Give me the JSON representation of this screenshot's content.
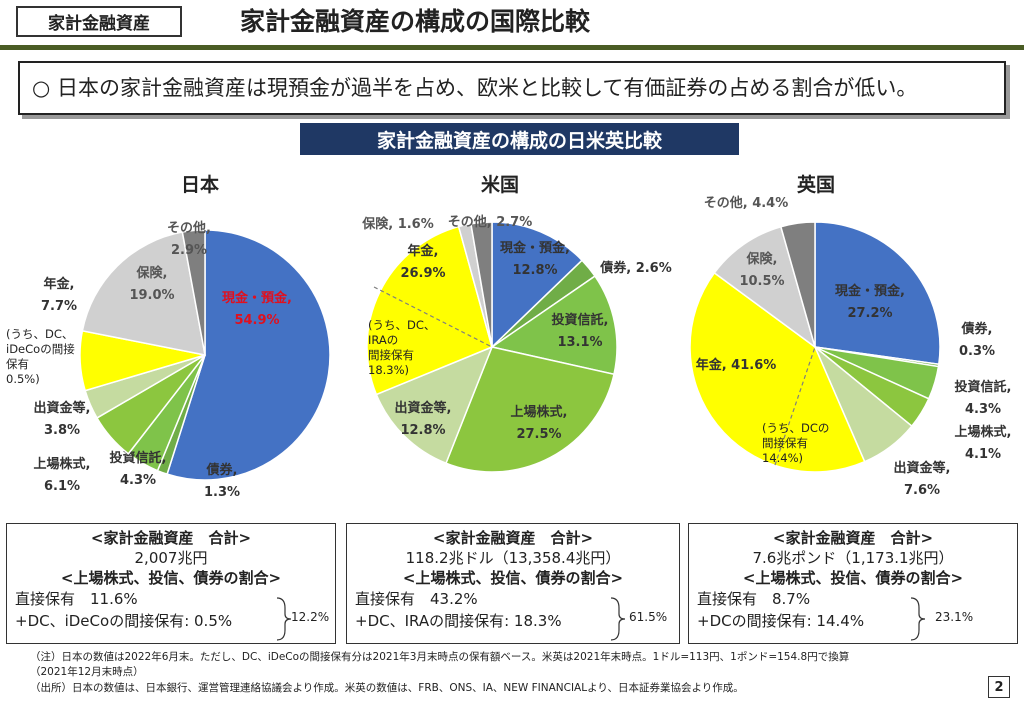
{
  "header": {
    "tag": "家計金融資産",
    "title": "家計金融資産の構成の国際比較"
  },
  "summary": "○ 日本の家計金融資産は現預金が過半を占め、欧米と比較して有価証券の占める割合が低い。",
  "banner": "家計金融資産の構成の日米英比較",
  "colors": {
    "cash": "#4472c4",
    "bonds": "#70ad47",
    "funds": "#7fc34a",
    "stocks": "#8cc63f",
    "investment": "#c5dba0",
    "pension": "#ffff00",
    "insurance": "#d0d0d0",
    "other": "#7f7f7f",
    "header_green": "#4a5c24",
    "banner_blue": "#1f3864",
    "highlight_red": "#e0101e"
  },
  "chart_data": [
    {
      "type": "pie",
      "title": "日本",
      "slices": [
        {
          "name": "現金・預金",
          "value": 54.9,
          "label_name": "現金・預金,",
          "label_value": "54.9%",
          "color": "cash"
        },
        {
          "name": "債券",
          "value": 1.3,
          "label_name": "債券,",
          "label_value": "1.3%",
          "color": "bonds"
        },
        {
          "name": "投資信託",
          "value": 4.3,
          "label_name": "投資信託,",
          "label_value": "4.3%",
          "color": "funds"
        },
        {
          "name": "上場株式",
          "value": 6.1,
          "label_name": "上場株式,",
          "label_value": "6.1%",
          "color": "stocks"
        },
        {
          "name": "出資金等",
          "value": 3.8,
          "label_name": "出資金等,",
          "label_value": "3.8%",
          "color": "investment"
        },
        {
          "name": "年金",
          "value": 7.7,
          "label_name": "年金,",
          "label_value": "7.7%",
          "color": "pension"
        },
        {
          "name": "保険",
          "value": 19.0,
          "label_name": "保険,",
          "label_value": "19.0%",
          "color": "insurance"
        },
        {
          "name": "その他",
          "value": 2.9,
          "label_name": "その他,",
          "label_value": "2.9%",
          "color": "other"
        }
      ],
      "pension_note": [
        "(うち、DC、",
        "iDeCoの間接",
        "保有",
        "0.5%)"
      ]
    },
    {
      "type": "pie",
      "title": "米国",
      "slices": [
        {
          "name": "現金・預金",
          "value": 12.8,
          "label_name": "現金・預金,",
          "label_value": "12.8%",
          "color": "cash"
        },
        {
          "name": "債券",
          "value": 2.6,
          "label_name": "債券, 2.6%",
          "label_value": "",
          "color": "bonds"
        },
        {
          "name": "投資信託",
          "value": 13.1,
          "label_name": "投資信託,",
          "label_value": "13.1%",
          "color": "funds"
        },
        {
          "name": "上場株式",
          "value": 27.5,
          "label_name": "上場株式,",
          "label_value": "27.5%",
          "color": "stocks"
        },
        {
          "name": "出資金等",
          "value": 12.8,
          "label_name": "出資金等,",
          "label_value": "12.8%",
          "color": "investment"
        },
        {
          "name": "年金",
          "value": 26.9,
          "label_name": "年金,",
          "label_value": "26.9%",
          "color": "pension"
        },
        {
          "name": "保険",
          "value": 1.6,
          "label_name": "保険, 1.6%",
          "label_value": "",
          "color": "insurance"
        },
        {
          "name": "その他",
          "value": 2.7,
          "label_name": "その他, 2.7%",
          "label_value": "",
          "color": "other"
        }
      ],
      "pension_note": [
        "(うち、DC、",
        "IRAの",
        "間接保有",
        "18.3%)"
      ]
    },
    {
      "type": "pie",
      "title": "英国",
      "slices": [
        {
          "name": "現金・預金",
          "value": 27.2,
          "label_name": "現金・預金,",
          "label_value": "27.2%",
          "color": "cash"
        },
        {
          "name": "債券",
          "value": 0.3,
          "label_name": "債券,",
          "label_value": "0.3%",
          "color": "bonds"
        },
        {
          "name": "投資信託",
          "value": 4.3,
          "label_name": "投資信託,",
          "label_value": "4.3%",
          "color": "funds"
        },
        {
          "name": "上場株式",
          "value": 4.1,
          "label_name": "上場株式,",
          "label_value": "4.1%",
          "color": "stocks"
        },
        {
          "name": "出資金等",
          "value": 7.6,
          "label_name": "出資金等,",
          "label_value": "7.6%",
          "color": "investment"
        },
        {
          "name": "年金",
          "value": 41.6,
          "label_name": "年金, 41.6%",
          "label_value": "",
          "color": "pension"
        },
        {
          "name": "保険",
          "value": 10.5,
          "label_name": "保険,",
          "label_value": "10.5%",
          "color": "insurance"
        },
        {
          "name": "その他",
          "value": 4.4,
          "label_name": "その他, 4.4%",
          "label_value": "",
          "color": "other"
        }
      ],
      "pension_note": [
        "(うち、DCの",
        "間接保有",
        "14.4%)"
      ]
    }
  ],
  "totals": [
    {
      "heading": "<家計金融資産　合計>",
      "amount": "2,007兆円",
      "ratio_heading": "<上場株式、投信、債券の割合>",
      "direct": "直接保有　11.6%",
      "indirect": "+DC、iDeCoの間接保有: 0.5%",
      "sum": "12.2%"
    },
    {
      "heading": "<家計金融資産　合計>",
      "amount": "118.2兆ドル（13,358.4兆円）",
      "ratio_heading": "<上場株式、投信、債券の割合>",
      "direct": "直接保有　43.2%",
      "indirect": "+DC、IRAの間接保有: 18.3%",
      "sum": "61.5%"
    },
    {
      "heading": "<家計金融資産　合計>",
      "amount": "7.6兆ポンド（1,173.1兆円）",
      "ratio_heading": "<上場株式、投信、債券の割合>",
      "direct": "直接保有　8.7%",
      "indirect": "+DCの間接保有: 14.4%",
      "sum": "23.1%"
    }
  ],
  "notes": [
    "（注）日本の数値は2022年6月末。ただし、DC、iDeCoの間接保有分は2021年3月末時点の保有額ベース。米英は2021年末時点。1ドル=113円、1ポンド=154.8円で換算",
    "（2021年12月末時点）",
    "（出所）日本の数値は、日本銀行、運営管理連絡協議会より作成。米英の数値は、FRB、ONS、IA、NEW FINANCIALより、日本証券業協会より作成。"
  ],
  "page_number": "2"
}
